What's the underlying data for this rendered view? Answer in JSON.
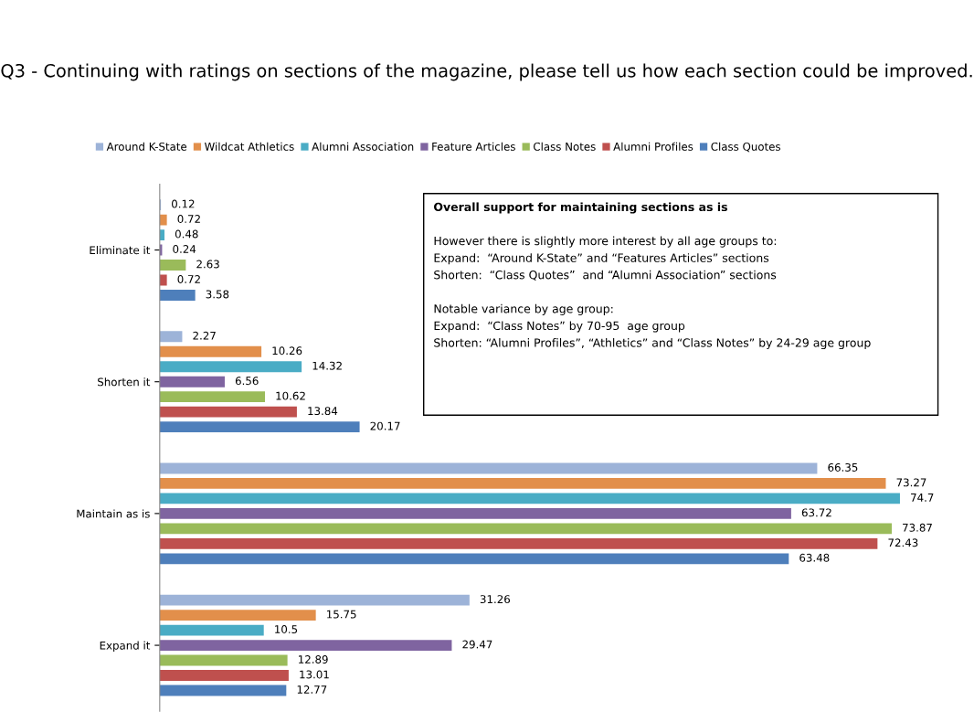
{
  "chart_data": {
    "type": "bar",
    "orientation": "horizontal",
    "title": "Q3 - Continuing with ratings on sections of the magazine, please tell us how each section could be improved.",
    "categories": [
      "Eliminate it",
      "Shorten it",
      "Maintain as is",
      "Expand it"
    ],
    "series": [
      {
        "name": "Around K-State",
        "color": "#9db3d8",
        "values": [
          0.12,
          2.27,
          66.35,
          31.26
        ]
      },
      {
        "name": "Wildcat Athletics",
        "color": "#e28f4b",
        "values": [
          0.72,
          10.26,
          73.27,
          15.75
        ]
      },
      {
        "name": "Alumni Association",
        "color": "#4aacc5",
        "values": [
          0.48,
          14.32,
          74.7,
          10.5
        ]
      },
      {
        "name": "Feature Articles",
        "color": "#7f64a0",
        "values": [
          0.24,
          6.56,
          63.72,
          29.47
        ]
      },
      {
        "name": "Class Notes",
        "color": "#9abb5a",
        "values": [
          2.63,
          10.62,
          73.87,
          12.89
        ]
      },
      {
        "name": "Alumni Profiles",
        "color": "#bf504e",
        "values": [
          0.72,
          13.84,
          72.43,
          13.01
        ]
      },
      {
        "name": "Class Quotes",
        "color": "#4e7fbb",
        "values": [
          3.58,
          20.17,
          63.48,
          12.77
        ]
      }
    ],
    "data_labels": true,
    "legend": "top",
    "grid": false,
    "annotations": [
      "Overall support for maintaining sections as is",
      "However there is slightly more interest by all age groups to:",
      "Expand:  “Around K-State” and “Features Articles” sections",
      "Shorten:  “Class Quotes”  and “Alumni Association” sections",
      "Notable variance by age group:",
      "Expand:  “Class Notes” by 70-95  age group",
      "Shorten: “Alumni Profiles”, “Athletics” and “Class Notes” by 24-29 age group"
    ]
  }
}
